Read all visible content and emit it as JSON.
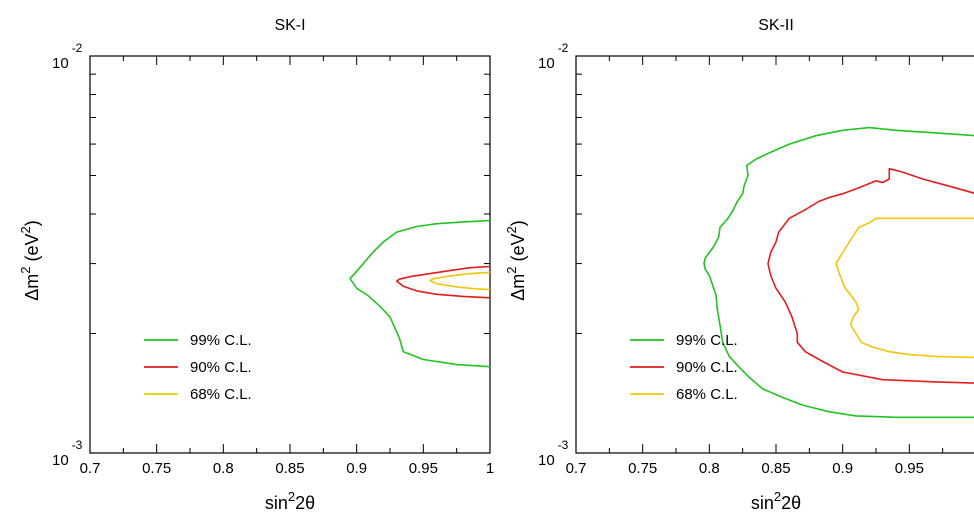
{
  "chart_data": [
    {
      "type": "line",
      "title": "SK-I",
      "xlabel": {
        "base": "sin",
        "sup": "2",
        "rest": "2θ"
      },
      "ylabel": {
        "p1": "Δm",
        "sup1": "2",
        "p2": " (eV",
        "sup2": "2",
        "p3": ")"
      },
      "xlim": [
        0.7,
        1.0
      ],
      "ylim": [
        0.001,
        0.01
      ],
      "yscale": "log",
      "xticks": [
        {
          "v": 0.7,
          "label": "0.7"
        },
        {
          "v": 0.75,
          "label": "0.75"
        },
        {
          "v": 0.8,
          "label": "0.8"
        },
        {
          "v": 0.85,
          "label": "0.85"
        },
        {
          "v": 0.9,
          "label": "0.9"
        },
        {
          "v": 0.95,
          "label": "0.95"
        },
        {
          "v": 1.0,
          "label": "1"
        }
      ],
      "yticklabels": [
        {
          "v": 0.01,
          "base": "10",
          "exp": "-2"
        },
        {
          "v": 0.001,
          "base": "10",
          "exp": "-3"
        }
      ],
      "legend": {
        "position": "lower-left",
        "entries": [
          {
            "label": "99% C.L.",
            "color": "#22c322"
          },
          {
            "label": "90% C.L.",
            "color": "#e31c1c"
          },
          {
            "label": "68% C.L.",
            "color": "#f2c40c"
          }
        ]
      },
      "series": [
        {
          "name": "99% C.L.",
          "color": "#22c322",
          "points": [
            [
              1.0,
              0.00385
            ],
            [
              0.98,
              0.00382
            ],
            [
              0.96,
              0.00378
            ],
            [
              0.945,
              0.00372
            ],
            [
              0.93,
              0.0036
            ],
            [
              0.92,
              0.0034
            ],
            [
              0.912,
              0.0032
            ],
            [
              0.905,
              0.003
            ],
            [
              0.898,
              0.00282
            ],
            [
              0.895,
              0.00275
            ],
            [
              0.9,
              0.0026
            ],
            [
              0.908,
              0.0025
            ],
            [
              0.917,
              0.00235
            ],
            [
              0.925,
              0.0022
            ],
            [
              0.932,
              0.00195
            ],
            [
              0.935,
              0.0018
            ],
            [
              0.95,
              0.00172
            ],
            [
              0.975,
              0.00167
            ],
            [
              1.0,
              0.00165
            ]
          ]
        },
        {
          "name": "90% C.L.",
          "color": "#e31c1c",
          "points": [
            [
              1.0,
              0.00295
            ],
            [
              0.985,
              0.00293
            ],
            [
              0.97,
              0.00288
            ],
            [
              0.955,
              0.00283
            ],
            [
              0.94,
              0.00278
            ],
            [
              0.932,
              0.00274
            ],
            [
              0.93,
              0.00271
            ],
            [
              0.935,
              0.00263
            ],
            [
              0.945,
              0.00256
            ],
            [
              0.96,
              0.00251
            ],
            [
              0.98,
              0.00248
            ],
            [
              1.0,
              0.00246
            ]
          ]
        },
        {
          "name": "68% C.L.",
          "color": "#f2c40c",
          "points": [
            [
              1.0,
              0.00285
            ],
            [
              0.985,
              0.00283
            ],
            [
              0.97,
              0.00279
            ],
            [
              0.958,
              0.00275
            ],
            [
              0.955,
              0.00272
            ],
            [
              0.96,
              0.00267
            ],
            [
              0.975,
              0.00262
            ],
            [
              0.99,
              0.00259
            ],
            [
              1.0,
              0.00258
            ]
          ]
        }
      ]
    },
    {
      "type": "line",
      "title": "SK-II",
      "xlabel": {
        "base": "sin",
        "sup": "2",
        "rest": "2θ"
      },
      "ylabel": {
        "p1": "Δm",
        "sup1": "2",
        "p2": " (eV",
        "sup2": "2",
        "p3": ")"
      },
      "xlim": [
        0.7,
        1.0
      ],
      "ylim": [
        0.001,
        0.01
      ],
      "yscale": "log",
      "xticks": [
        {
          "v": 0.7,
          "label": "0.7"
        },
        {
          "v": 0.75,
          "label": "0.75"
        },
        {
          "v": 0.8,
          "label": "0.8"
        },
        {
          "v": 0.85,
          "label": "0.85"
        },
        {
          "v": 0.9,
          "label": "0.9"
        },
        {
          "v": 0.95,
          "label": "0.95"
        }
      ],
      "yticklabels": [
        {
          "v": 0.01,
          "base": "10",
          "exp": "-2"
        },
        {
          "v": 0.001,
          "base": "10",
          "exp": "-3"
        }
      ],
      "legend": {
        "position": "lower-left",
        "entries": [
          {
            "label": "99% C.L.",
            "color": "#22c322"
          },
          {
            "label": "90% C.L.",
            "color": "#e31c1c"
          },
          {
            "label": "68% C.L.",
            "color": "#f2c40c"
          }
        ]
      },
      "series": [
        {
          "name": "99% C.L.",
          "color": "#22c322",
          "points": [
            [
              1.0,
              0.0063
            ],
            [
              0.97,
              0.0064
            ],
            [
              0.94,
              0.0065
            ],
            [
              0.92,
              0.0066
            ],
            [
              0.9,
              0.0065
            ],
            [
              0.88,
              0.0063
            ],
            [
              0.86,
              0.006
            ],
            [
              0.845,
              0.0057
            ],
            [
              0.835,
              0.0055
            ],
            [
              0.828,
              0.0053
            ],
            [
              0.829,
              0.005
            ],
            [
              0.826,
              0.0047
            ],
            [
              0.825,
              0.0045
            ],
            [
              0.821,
              0.0043
            ],
            [
              0.818,
              0.0041
            ],
            [
              0.814,
              0.0039
            ],
            [
              0.808,
              0.0037
            ],
            [
              0.807,
              0.0035
            ],
            [
              0.803,
              0.0033
            ],
            [
              0.797,
              0.0031
            ],
            [
              0.796,
              0.003
            ],
            [
              0.797,
              0.0029
            ],
            [
              0.8,
              0.0028
            ],
            [
              0.805,
              0.0025
            ],
            [
              0.806,
              0.0023
            ],
            [
              0.808,
              0.0021
            ],
            [
              0.81,
              0.0019
            ],
            [
              0.815,
              0.00175
            ],
            [
              0.822,
              0.00165
            ],
            [
              0.83,
              0.00155
            ],
            [
              0.84,
              0.00145
            ],
            [
              0.855,
              0.00138
            ],
            [
              0.87,
              0.00132
            ],
            [
              0.89,
              0.00127
            ],
            [
              0.91,
              0.00124
            ],
            [
              0.94,
              0.00123
            ],
            [
              1.0,
              0.00123
            ]
          ]
        },
        {
          "name": "90% C.L.",
          "color": "#e31c1c",
          "points": [
            [
              1.0,
              0.0045
            ],
            [
              0.98,
              0.0047
            ],
            [
              0.96,
              0.0049
            ],
            [
              0.945,
              0.0051
            ],
            [
              0.935,
              0.0052
            ],
            [
              0.935,
              0.0049
            ],
            [
              0.93,
              0.0048
            ],
            [
              0.925,
              0.00485
            ],
            [
              0.915,
              0.0047
            ],
            [
              0.908,
              0.0046
            ],
            [
              0.9,
              0.0045
            ],
            [
              0.89,
              0.0044
            ],
            [
              0.882,
              0.0043
            ],
            [
              0.872,
              0.0041
            ],
            [
              0.86,
              0.0039
            ],
            [
              0.852,
              0.0036
            ],
            [
              0.85,
              0.0034
            ],
            [
              0.846,
              0.0032
            ],
            [
              0.844,
              0.003
            ],
            [
              0.846,
              0.0028
            ],
            [
              0.85,
              0.0026
            ],
            [
              0.857,
              0.0024
            ],
            [
              0.862,
              0.0022
            ],
            [
              0.866,
              0.002
            ],
            [
              0.866,
              0.0019
            ],
            [
              0.872,
              0.0018
            ],
            [
              0.885,
              0.0017
            ],
            [
              0.9,
              0.0016
            ],
            [
              0.93,
              0.00153
            ],
            [
              0.97,
              0.00151
            ],
            [
              1.0,
              0.0015
            ]
          ]
        },
        {
          "name": "68% C.L.",
          "color": "#f2c40c",
          "points": [
            [
              1.0,
              0.0039
            ],
            [
              0.98,
              0.0039
            ],
            [
              0.96,
              0.0039
            ],
            [
              0.94,
              0.0039
            ],
            [
              0.925,
              0.0039
            ],
            [
              0.92,
              0.0038
            ],
            [
              0.912,
              0.0037
            ],
            [
              0.905,
              0.0034
            ],
            [
              0.9,
              0.0032
            ],
            [
              0.895,
              0.003
            ],
            [
              0.898,
              0.0028
            ],
            [
              0.902,
              0.0026
            ],
            [
              0.906,
              0.0025
            ],
            [
              0.91,
              0.0024
            ],
            [
              0.912,
              0.0023
            ],
            [
              0.908,
              0.0022
            ],
            [
              0.906,
              0.0021
            ],
            [
              0.91,
              0.002
            ],
            [
              0.914,
              0.0019
            ],
            [
              0.922,
              0.00185
            ],
            [
              0.935,
              0.0018
            ],
            [
              0.95,
              0.00177
            ],
            [
              0.97,
              0.00175
            ],
            [
              1.0,
              0.00174
            ]
          ]
        }
      ]
    }
  ]
}
